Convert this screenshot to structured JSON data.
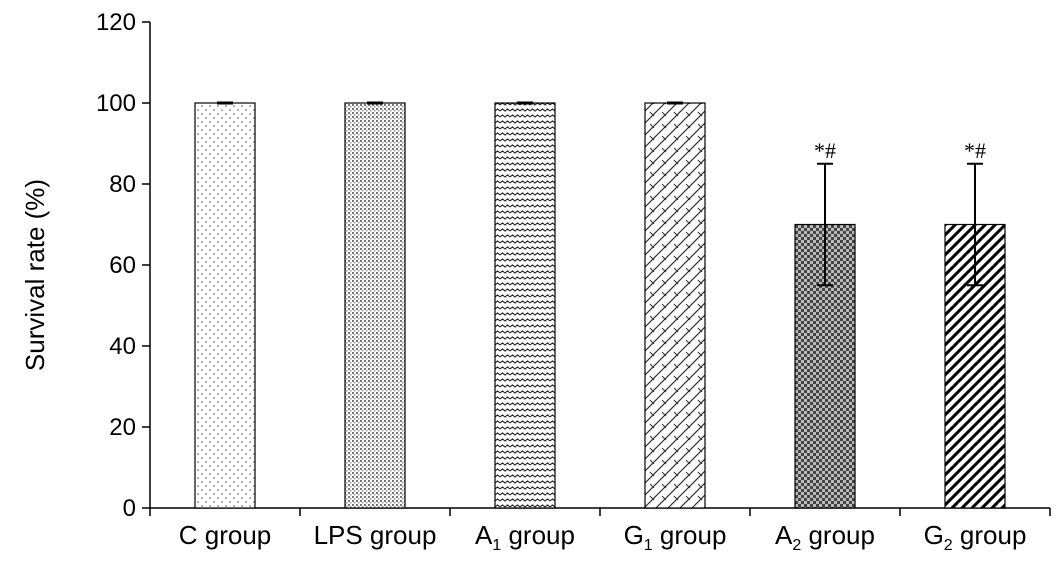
{
  "chart_data": {
    "type": "bar",
    "categories": [
      {
        "main": "C group",
        "sub": "",
        "rest": ""
      },
      {
        "main": "LPS group",
        "sub": "",
        "rest": ""
      },
      {
        "main": "A",
        "sub": "1",
        "rest": " group"
      },
      {
        "main": "G",
        "sub": "1",
        "rest": " group"
      },
      {
        "main": "A",
        "sub": "2",
        "rest": " group"
      },
      {
        "main": "G",
        "sub": "2",
        "rest": " group"
      }
    ],
    "values": [
      100,
      100,
      100,
      100,
      70,
      70
    ],
    "errors": [
      0,
      0,
      0,
      0,
      15,
      15
    ],
    "annotations": [
      "",
      "",
      "",
      "",
      "*#",
      "*#"
    ],
    "patterns": [
      "dots-sparse",
      "dots-dense",
      "waves",
      "bricks",
      "checker",
      "diagonal"
    ],
    "ylabel": "Survival rate (%)",
    "ylim": [
      0,
      120
    ],
    "yticks": [
      0,
      20,
      40,
      60,
      80,
      100,
      120
    ],
    "grid": false
  }
}
